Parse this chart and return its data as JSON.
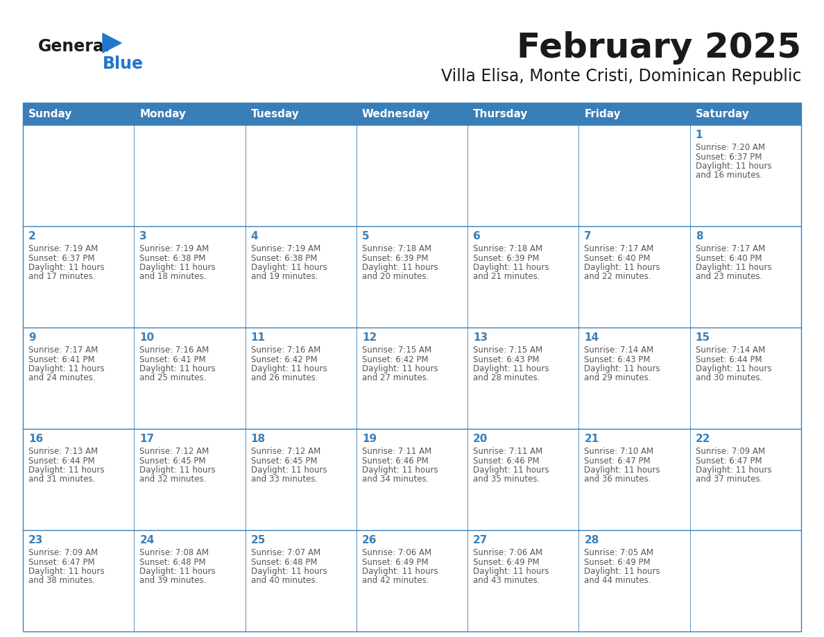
{
  "title": "February 2025",
  "subtitle": "Villa Elisa, Monte Cristi, Dominican Republic",
  "days_of_week": [
    "Sunday",
    "Monday",
    "Tuesday",
    "Wednesday",
    "Thursday",
    "Friday",
    "Saturday"
  ],
  "header_bg_color": "#3a7eb8",
  "header_text_color": "#ffffff",
  "cell_bg_color": "#ffffff",
  "grid_color": "#3a7eb8",
  "day_num_color": "#3a7eb8",
  "info_text_color": "#555555",
  "title_color": "#1a1a1a",
  "subtitle_color": "#1a1a1a",
  "logo_general_color": "#1a1a1a",
  "logo_blue_color": "#2277cc",
  "background_color": "#ffffff",
  "calendar_data": [
    [
      null,
      null,
      null,
      null,
      null,
      null,
      {
        "day": 1,
        "sunrise": "7:20 AM",
        "sunset": "6:37 PM",
        "daylight": "11 hours and 16 minutes."
      }
    ],
    [
      {
        "day": 2,
        "sunrise": "7:19 AM",
        "sunset": "6:37 PM",
        "daylight": "11 hours and 17 minutes."
      },
      {
        "day": 3,
        "sunrise": "7:19 AM",
        "sunset": "6:38 PM",
        "daylight": "11 hours and 18 minutes."
      },
      {
        "day": 4,
        "sunrise": "7:19 AM",
        "sunset": "6:38 PM",
        "daylight": "11 hours and 19 minutes."
      },
      {
        "day": 5,
        "sunrise": "7:18 AM",
        "sunset": "6:39 PM",
        "daylight": "11 hours and 20 minutes."
      },
      {
        "day": 6,
        "sunrise": "7:18 AM",
        "sunset": "6:39 PM",
        "daylight": "11 hours and 21 minutes."
      },
      {
        "day": 7,
        "sunrise": "7:17 AM",
        "sunset": "6:40 PM",
        "daylight": "11 hours and 22 minutes."
      },
      {
        "day": 8,
        "sunrise": "7:17 AM",
        "sunset": "6:40 PM",
        "daylight": "11 hours and 23 minutes."
      }
    ],
    [
      {
        "day": 9,
        "sunrise": "7:17 AM",
        "sunset": "6:41 PM",
        "daylight": "11 hours and 24 minutes."
      },
      {
        "day": 10,
        "sunrise": "7:16 AM",
        "sunset": "6:41 PM",
        "daylight": "11 hours and 25 minutes."
      },
      {
        "day": 11,
        "sunrise": "7:16 AM",
        "sunset": "6:42 PM",
        "daylight": "11 hours and 26 minutes."
      },
      {
        "day": 12,
        "sunrise": "7:15 AM",
        "sunset": "6:42 PM",
        "daylight": "11 hours and 27 minutes."
      },
      {
        "day": 13,
        "sunrise": "7:15 AM",
        "sunset": "6:43 PM",
        "daylight": "11 hours and 28 minutes."
      },
      {
        "day": 14,
        "sunrise": "7:14 AM",
        "sunset": "6:43 PM",
        "daylight": "11 hours and 29 minutes."
      },
      {
        "day": 15,
        "sunrise": "7:14 AM",
        "sunset": "6:44 PM",
        "daylight": "11 hours and 30 minutes."
      }
    ],
    [
      {
        "day": 16,
        "sunrise": "7:13 AM",
        "sunset": "6:44 PM",
        "daylight": "11 hours and 31 minutes."
      },
      {
        "day": 17,
        "sunrise": "7:12 AM",
        "sunset": "6:45 PM",
        "daylight": "11 hours and 32 minutes."
      },
      {
        "day": 18,
        "sunrise": "7:12 AM",
        "sunset": "6:45 PM",
        "daylight": "11 hours and 33 minutes."
      },
      {
        "day": 19,
        "sunrise": "7:11 AM",
        "sunset": "6:46 PM",
        "daylight": "11 hours and 34 minutes."
      },
      {
        "day": 20,
        "sunrise": "7:11 AM",
        "sunset": "6:46 PM",
        "daylight": "11 hours and 35 minutes."
      },
      {
        "day": 21,
        "sunrise": "7:10 AM",
        "sunset": "6:47 PM",
        "daylight": "11 hours and 36 minutes."
      },
      {
        "day": 22,
        "sunrise": "7:09 AM",
        "sunset": "6:47 PM",
        "daylight": "11 hours and 37 minutes."
      }
    ],
    [
      {
        "day": 23,
        "sunrise": "7:09 AM",
        "sunset": "6:47 PM",
        "daylight": "11 hours and 38 minutes."
      },
      {
        "day": 24,
        "sunrise": "7:08 AM",
        "sunset": "6:48 PM",
        "daylight": "11 hours and 39 minutes."
      },
      {
        "day": 25,
        "sunrise": "7:07 AM",
        "sunset": "6:48 PM",
        "daylight": "11 hours and 40 minutes."
      },
      {
        "day": 26,
        "sunrise": "7:06 AM",
        "sunset": "6:49 PM",
        "daylight": "11 hours and 42 minutes."
      },
      {
        "day": 27,
        "sunrise": "7:06 AM",
        "sunset": "6:49 PM",
        "daylight": "11 hours and 43 minutes."
      },
      {
        "day": 28,
        "sunrise": "7:05 AM",
        "sunset": "6:49 PM",
        "daylight": "11 hours and 44 minutes."
      },
      null
    ]
  ]
}
